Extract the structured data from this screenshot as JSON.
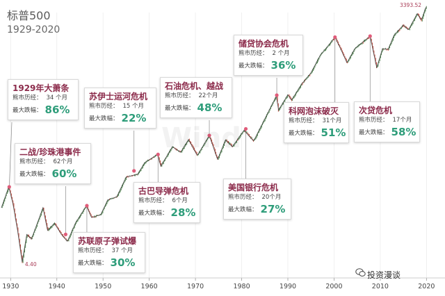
{
  "title": "标普500",
  "subtitle": "1929-2020",
  "watermark": "Wind",
  "brand": "投资漫谈",
  "colors": {
    "line": "#555555",
    "up_bar": "#3a7a3a",
    "down_bar": "#c0392b",
    "event_marker": "#e05c7a",
    "accent_name": "#8b2a4a",
    "accent_value": "#2e9d7a"
  },
  "chart_data": {
    "type": "line",
    "y_scale": "log",
    "x_ticks": [
      "1930",
      "1940",
      "1950",
      "1960",
      "1970",
      "1980",
      "1990",
      "2000",
      "2010",
      "2020"
    ],
    "xlim": [
      1928,
      2021
    ],
    "annotated_points": [
      {
        "x": 1932.5,
        "y": 4.4,
        "label": "4.40"
      },
      {
        "x": 2020.1,
        "y": 3393.52,
        "label": "3393.52"
      }
    ],
    "series": [
      {
        "points": [
          [
            1928.0,
            18
          ],
          [
            1929.6,
            31
          ],
          [
            1930.5,
            20
          ],
          [
            1931.5,
            10
          ],
          [
            1932.5,
            4.4
          ],
          [
            1933.5,
            9
          ],
          [
            1934.5,
            8
          ],
          [
            1935.5,
            11
          ],
          [
            1937.0,
            18
          ],
          [
            1938.0,
            10
          ],
          [
            1939.5,
            12
          ],
          [
            1941.0,
            9
          ],
          [
            1942.3,
            7.5
          ],
          [
            1944.0,
            12
          ],
          [
            1946.4,
            19
          ],
          [
            1947.5,
            14
          ],
          [
            1949.5,
            15
          ],
          [
            1951.0,
            22
          ],
          [
            1953.0,
            24
          ],
          [
            1955.0,
            40
          ],
          [
            1957.5,
            43
          ],
          [
            1959.0,
            58
          ],
          [
            1961.8,
            72
          ],
          [
            1962.5,
            53
          ],
          [
            1965.0,
            88
          ],
          [
            1966.8,
            76
          ],
          [
            1968.5,
            106
          ],
          [
            1970.4,
            70
          ],
          [
            1973.0,
            118
          ],
          [
            1974.8,
            63
          ],
          [
            1976.5,
            105
          ],
          [
            1978.0,
            88
          ],
          [
            1980.5,
            135
          ],
          [
            1982.6,
            102
          ],
          [
            1987.6,
            336
          ],
          [
            1987.9,
            224
          ],
          [
            1990.0,
            340
          ],
          [
            1990.8,
            295
          ],
          [
            1993.0,
            450
          ],
          [
            1995.0,
            600
          ],
          [
            1997.0,
            950
          ],
          [
            1998.8,
            1230
          ],
          [
            2000.2,
            1520
          ],
          [
            2001.5,
            1100
          ],
          [
            2002.8,
            780
          ],
          [
            2004.5,
            1130
          ],
          [
            2007.8,
            1560
          ],
          [
            2008.8,
            880
          ],
          [
            2009.2,
            680
          ],
          [
            2010.5,
            1130
          ],
          [
            2011.7,
            1100
          ],
          [
            2013.0,
            1600
          ],
          [
            2015.0,
            2080
          ],
          [
            2016.1,
            1830
          ],
          [
            2018.0,
            2800
          ],
          [
            2018.9,
            2350
          ],
          [
            2019.8,
            3240
          ],
          [
            2020.1,
            3393.52
          ]
        ]
      }
    ],
    "events": [
      {
        "name": "1929年大萧条",
        "x": 1929.7,
        "y": 31,
        "bear_label": "熊市历经：",
        "duration": "34 个月",
        "drop_label": "最大跌幅：",
        "drop": "86%"
      },
      {
        "name": "二战/珍珠港事件",
        "x": 1941.9,
        "y": 9,
        "bear_label": "熊市历经：",
        "duration": "62个月",
        "drop_label": "最大跌幅：",
        "drop": "60%"
      },
      {
        "name": "苏联原子弹试爆",
        "x": 1946.5,
        "y": 19,
        "bear_label": "熊市历经：",
        "duration": "37 个月",
        "drop_label": "最大跌幅：",
        "drop": "30%"
      },
      {
        "name": "苏伊士运河危机",
        "x": 1956.7,
        "y": 47,
        "bear_label": "熊市历经：",
        "duration": "15 个月",
        "drop_label": "最大跌幅：",
        "drop": "22%"
      },
      {
        "name": "古巴导弹危机",
        "x": 1961.9,
        "y": 72,
        "bear_label": "熊市历经：",
        "duration": "6个月",
        "drop_label": "最大跌幅：",
        "drop": "28%"
      },
      {
        "name": "石油危机、越战",
        "x": 1973.0,
        "y": 118,
        "bear_label": "熊市历经：",
        "duration": "22个月",
        "drop_label": "最大跌幅：",
        "drop": "48%"
      },
      {
        "name": "美国银行危机",
        "x": 1980.9,
        "y": 140,
        "bear_label": "熊市历经：",
        "duration": "20个月",
        "drop_label": "最大跌幅：",
        "drop": "27%"
      },
      {
        "name": "储贷协会危机",
        "x": 1987.6,
        "y": 336,
        "bear_label": "熊市历经：",
        "duration": "2 个月",
        "drop_label": "最大跌幅：",
        "drop": "36%"
      },
      {
        "name": "科网泡沫破灭",
        "x": 2000.2,
        "y": 1520,
        "bear_label": "熊市历经：",
        "duration": "31个月",
        "drop_label": "最大跌幅：",
        "drop": "51%"
      },
      {
        "name": "次贷危机",
        "x": 2007.8,
        "y": 1560,
        "bear_label": "熊市历经：",
        "duration": "17个月",
        "drop_label": "最大跌幅：",
        "drop": "58%"
      }
    ]
  }
}
